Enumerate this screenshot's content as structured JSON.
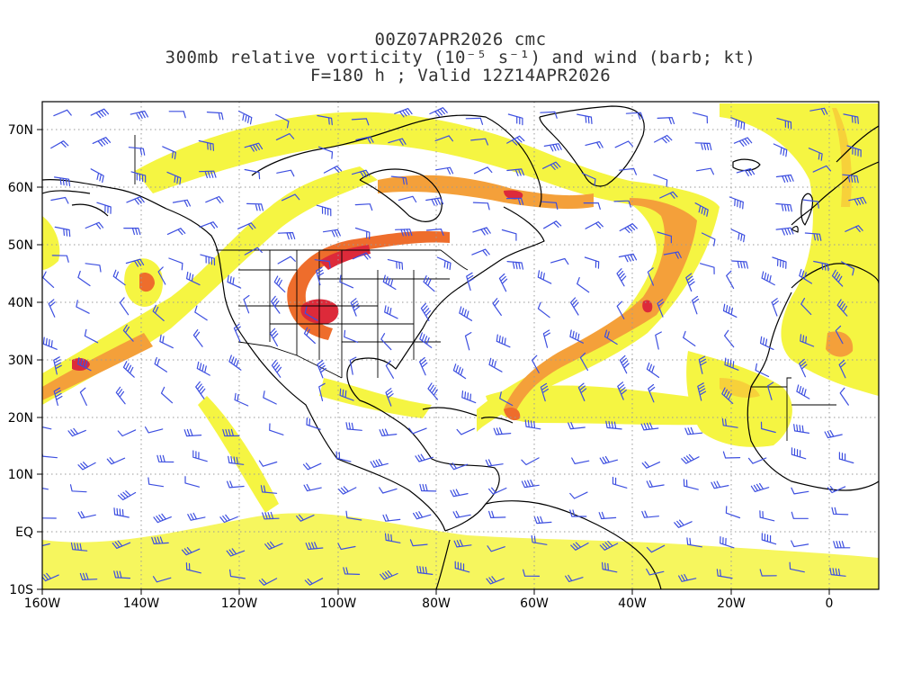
{
  "title": {
    "line1": "00Z07APR2026 cmc",
    "line2": "300mb relative vorticity (10⁻⁵ s⁻¹) and wind (barb; kt)",
    "line3": "F=180 h ; Valid 12Z14APR2026"
  },
  "axes": {
    "lon_labels": [
      "160W",
      "140W",
      "120W",
      "100W",
      "80W",
      "60W",
      "40W",
      "20W",
      "0"
    ],
    "lat_labels": [
      "70N",
      "60N",
      "50N",
      "40N",
      "30N",
      "20N",
      "10N",
      "EQ",
      "10S"
    ]
  },
  "colors": {
    "barb": "#3d4fe0",
    "coast": "#000000",
    "grid": "#9a9a9a",
    "shade_levels": [
      "#f5f542",
      "#f7d13a",
      "#f4a03a",
      "#ee6d2c",
      "#dd2a3a"
    ]
  }
}
